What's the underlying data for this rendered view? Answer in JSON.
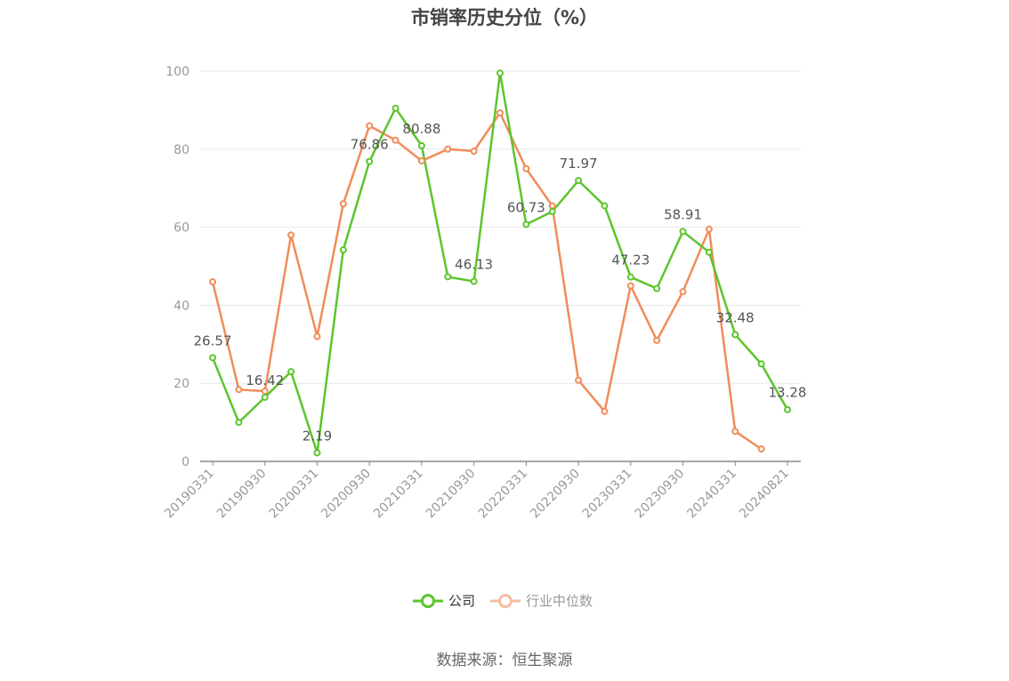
{
  "chart_data": {
    "type": "line",
    "title": "市销率历史分位（%）",
    "xlabel": "",
    "ylabel": "",
    "ylim": [
      0,
      100
    ],
    "yticks": [
      0,
      20,
      40,
      60,
      80,
      100
    ],
    "x": [
      "20190331",
      "20190630",
      "20190930",
      "20191231",
      "20200331",
      "20200630",
      "20200930",
      "20201231",
      "20210331",
      "20210630",
      "20210930",
      "20211231",
      "20220331",
      "20220630",
      "20220930",
      "20221231",
      "20230331",
      "20230630",
      "20230930",
      "20231231",
      "20240331",
      "20240630",
      "20240821"
    ],
    "xtick_labels": [
      "20190331",
      "20190930",
      "20200331",
      "20200930",
      "20210331",
      "20210930",
      "20220331",
      "20220930",
      "20230331",
      "20230930",
      "20240331",
      "20240821"
    ],
    "grid": true,
    "legend_position": "bottom",
    "series": [
      {
        "name": "公司",
        "color": "#5cc52c",
        "values": [
          26.57,
          10.0,
          16.42,
          23.0,
          2.19,
          54.2,
          76.86,
          90.5,
          80.88,
          47.3,
          46.13,
          99.5,
          60.73,
          64.0,
          71.97,
          65.5,
          47.23,
          44.3,
          58.91,
          53.6,
          32.48,
          25.0,
          13.28
        ],
        "labeled_points": [
          {
            "index": 0,
            "text": "26.57"
          },
          {
            "index": 2,
            "text": "16.42"
          },
          {
            "index": 4,
            "text": "2.19"
          },
          {
            "index": 6,
            "text": "76.86"
          },
          {
            "index": 8,
            "text": "80.88"
          },
          {
            "index": 10,
            "text": "46.13"
          },
          {
            "index": 12,
            "text": "60.73"
          },
          {
            "index": 14,
            "text": "71.97"
          },
          {
            "index": 16,
            "text": "47.23"
          },
          {
            "index": 18,
            "text": "58.91"
          },
          {
            "index": 20,
            "text": "32.48"
          },
          {
            "index": 22,
            "text": "13.28"
          }
        ]
      },
      {
        "name": "行业中位数",
        "color": "#f08c5a",
        "values": [
          46.0,
          18.4,
          18.0,
          58.0,
          32.0,
          66.0,
          86.0,
          82.3,
          77.0,
          80.0,
          79.5,
          89.3,
          75.0,
          65.5,
          20.8,
          12.8,
          45.0,
          31.0,
          43.5,
          59.5,
          7.7,
          3.2,
          null
        ]
      }
    ]
  },
  "legend": {
    "company_label": "公司",
    "industry_label": "行业中位数"
  },
  "source_text": "数据来源：恒生聚源"
}
